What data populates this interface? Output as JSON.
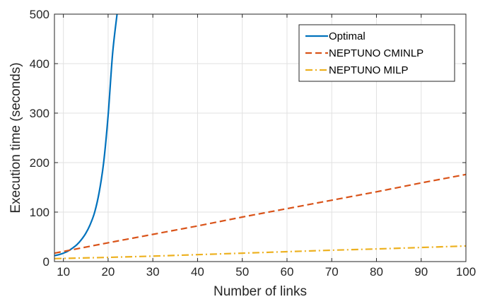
{
  "chart_data": {
    "type": "line",
    "xlabel": "Number of links",
    "ylabel": "Execution time (seconds)",
    "xlim": [
      8,
      100
    ],
    "ylim": [
      0,
      500
    ],
    "xticks": [
      10,
      20,
      30,
      40,
      50,
      60,
      70,
      80,
      90,
      100
    ],
    "yticks": [
      0,
      100,
      200,
      300,
      400,
      500
    ],
    "grid": true,
    "legend_position": "top-right",
    "series": [
      {
        "name": "Optimal",
        "color": "#0072BD",
        "style": "solid",
        "x": [
          8,
          9,
          10,
          11,
          12,
          13,
          14,
          15,
          16,
          17,
          18,
          19,
          20,
          21,
          22
        ],
        "y": [
          12,
          14,
          17,
          21,
          27,
          34,
          44,
          57,
          75,
          100,
          140,
          200,
          295,
          420,
          500
        ]
      },
      {
        "name": "NEPTUNO CMINLP",
        "color": "#D95319",
        "style": "dashed",
        "x": [
          8,
          20,
          30,
          40,
          50,
          60,
          70,
          80,
          90,
          100
        ],
        "y": [
          17,
          38,
          55,
          72,
          90,
          107,
          124,
          141,
          159,
          176
        ]
      },
      {
        "name": "NEPTUNO MILP",
        "color": "#EDB120",
        "style": "dashdot",
        "x": [
          8,
          20,
          30,
          40,
          50,
          60,
          70,
          80,
          90,
          100
        ],
        "y": [
          6,
          8.5,
          11,
          14,
          17,
          20,
          23,
          25.5,
          28.5,
          31.5
        ]
      }
    ]
  }
}
